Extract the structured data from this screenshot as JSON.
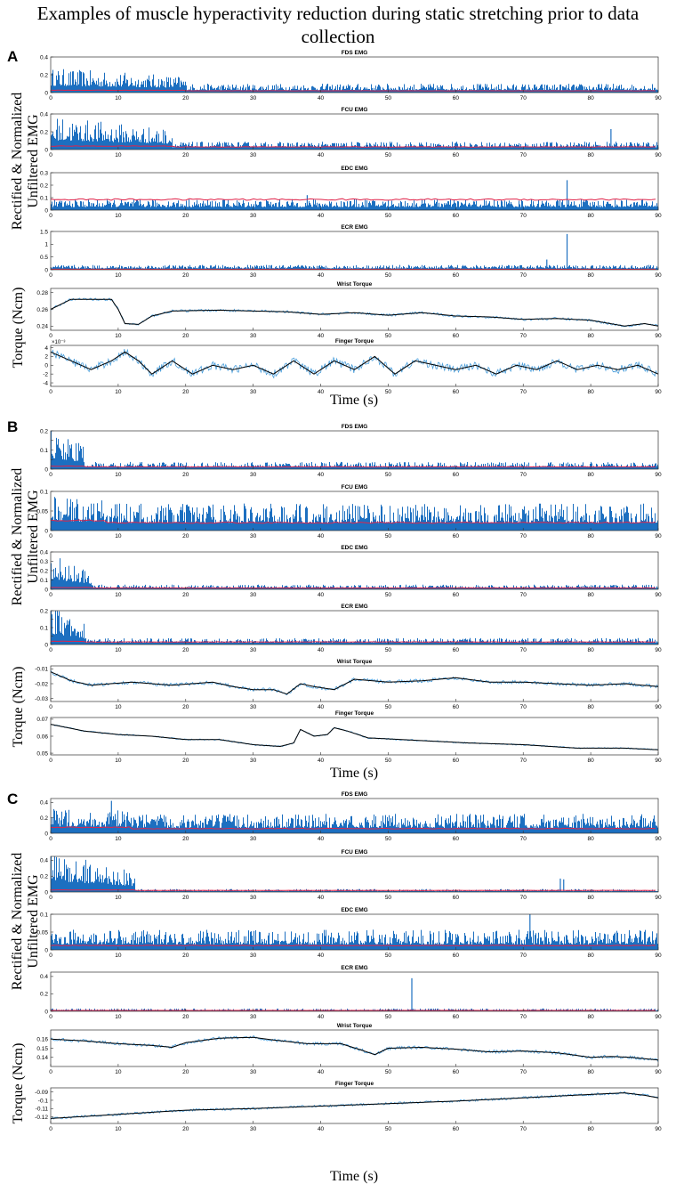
{
  "figure": {
    "title": "Examples of muscle hyperactivity reduction during static stretching prior to data collection",
    "title_line1": "Examples of muscle hyperactivity reduction during static stretching prior to data",
    "title_line2": "collection"
  },
  "colors": {
    "signal": "#1c6fc0",
    "raw_torque": "#4a9edb",
    "envelope_emg": "#e0244a",
    "filtered_torque": "#000000",
    "axis": "#333333"
  },
  "panels": [
    {
      "label": "A",
      "emg_ylabel_line1": "Rectified & Normalized",
      "emg_ylabel_line2": "Unfiltered EMG",
      "torque_ylabel": "Torque (Ncm)",
      "xlabel": "Time (s)"
    },
    {
      "label": "B",
      "emg_ylabel_line1": "Rectified & Normalized",
      "emg_ylabel_line2": "Unfiltered EMG",
      "torque_ylabel": "Torque (Ncm)",
      "xlabel": "Time (s)"
    },
    {
      "label": "C",
      "emg_ylabel_line1": "Rectified & Normalized",
      "emg_ylabel_line2": "Unfiltered EMG",
      "torque_ylabel": "Torque (Ncm)",
      "xlabel": "Time (s)"
    }
  ],
  "chart_data": [
    {
      "panel": "A",
      "type": "bar",
      "title": "FDS EMG",
      "xlim": [
        0,
        90
      ],
      "xticks": [
        0,
        10,
        20,
        30,
        40,
        50,
        60,
        70,
        80,
        90
      ],
      "ylim": [
        0,
        0.4
      ],
      "yticks": [
        0,
        0.2,
        0.4
      ],
      "ytick_labels": [
        "0",
        "0.2",
        "0.4"
      ],
      "baseline": 0.08,
      "envelope": 0.02,
      "early_level": 0.22,
      "early_end": 20,
      "spikes": []
    },
    {
      "panel": "A",
      "type": "bar",
      "title": "FCU EMG",
      "xlim": [
        0,
        90
      ],
      "xticks": [
        0,
        10,
        20,
        30,
        40,
        50,
        60,
        70,
        80,
        90
      ],
      "ylim": [
        0,
        0.4
      ],
      "yticks": [
        0,
        0.2,
        0.4
      ],
      "ytick_labels": [
        "0",
        "0.2",
        "0.4"
      ],
      "baseline": 0.07,
      "envelope": 0.03,
      "early_level": 0.3,
      "early_end": 18,
      "spikes": [
        {
          "t": 83,
          "v": 0.23
        }
      ]
    },
    {
      "panel": "A",
      "type": "bar",
      "title": "EDC EMG",
      "xlim": [
        0,
        90
      ],
      "xticks": [
        0,
        10,
        20,
        30,
        40,
        50,
        60,
        70,
        80,
        90
      ],
      "ylim": [
        0,
        0.3
      ],
      "yticks": [
        0,
        0.1,
        0.2,
        0.3
      ],
      "ytick_labels": [
        "0",
        "0.1",
        "0.2",
        "0.3"
      ],
      "baseline": 0.07,
      "envelope": 0.085,
      "early_level": 0.07,
      "early_end": 0,
      "spikes": [
        {
          "t": 76.5,
          "v": 0.24
        },
        {
          "t": 38,
          "v": 0.12
        }
      ]
    },
    {
      "panel": "A",
      "type": "bar",
      "title": "ECR EMG",
      "xlim": [
        0,
        90
      ],
      "xticks": [
        0,
        10,
        20,
        30,
        40,
        50,
        60,
        70,
        80,
        90
      ],
      "ylim": [
        0,
        1.5
      ],
      "yticks": [
        0,
        0.5,
        1,
        1.5
      ],
      "ytick_labels": [
        "0",
        "0.5",
        "1",
        "1.5"
      ],
      "baseline": 0.15,
      "envelope": 0.02,
      "early_level": 0.15,
      "early_end": 0,
      "spikes": [
        {
          "t": 76.5,
          "v": 1.4
        },
        {
          "t": 73.5,
          "v": 0.4
        }
      ]
    },
    {
      "panel": "A",
      "type": "line",
      "title": "Wrist Torque",
      "xlim": [
        0,
        90
      ],
      "xticks": [
        0,
        10,
        20,
        30,
        40,
        50,
        60,
        70,
        80,
        90
      ],
      "ylim": [
        0.235,
        0.285
      ],
      "yticks": [
        0.24,
        0.26,
        0.28
      ],
      "ytick_labels": [
        "0.24",
        "0.26",
        "0.28"
      ],
      "noise": 0.0015,
      "points": [
        [
          0,
          0.26
        ],
        [
          3,
          0.272
        ],
        [
          9,
          0.272
        ],
        [
          10,
          0.26
        ],
        [
          11,
          0.243
        ],
        [
          13,
          0.242
        ],
        [
          15,
          0.252
        ],
        [
          18,
          0.258
        ],
        [
          25,
          0.259
        ],
        [
          30,
          0.258
        ],
        [
          35,
          0.257
        ],
        [
          40,
          0.254
        ],
        [
          45,
          0.256
        ],
        [
          50,
          0.253
        ],
        [
          55,
          0.256
        ],
        [
          60,
          0.252
        ],
        [
          65,
          0.251
        ],
        [
          70,
          0.248
        ],
        [
          75,
          0.249
        ],
        [
          80,
          0.247
        ],
        [
          85,
          0.24
        ],
        [
          88,
          0.243
        ],
        [
          90,
          0.24
        ]
      ]
    },
    {
      "panel": "A",
      "type": "line",
      "title": "Finger Torque",
      "xlim": [
        0,
        90
      ],
      "xticks": [
        0,
        10,
        20,
        30,
        40,
        50,
        60,
        70,
        80,
        90
      ],
      "ylim": [
        -4.8,
        4.5
      ],
      "yticks": [
        -4,
        -2,
        0,
        2,
        4
      ],
      "ytick_labels": [
        "-4",
        "-2",
        "0",
        "2",
        "4"
      ],
      "exponent": "×10⁻³",
      "noise": 0.9,
      "points": [
        [
          0,
          3
        ],
        [
          3,
          1
        ],
        [
          6,
          -1
        ],
        [
          9,
          1
        ],
        [
          11,
          3
        ],
        [
          13,
          1
        ],
        [
          15,
          -2
        ],
        [
          18,
          1
        ],
        [
          21,
          -2
        ],
        [
          24,
          0
        ],
        [
          27,
          -1
        ],
        [
          30,
          0
        ],
        [
          33,
          -2
        ],
        [
          36,
          1
        ],
        [
          39,
          -2
        ],
        [
          42,
          1
        ],
        [
          45,
          -1
        ],
        [
          48,
          2
        ],
        [
          51,
          -2
        ],
        [
          54,
          1
        ],
        [
          57,
          0
        ],
        [
          60,
          -1
        ],
        [
          63,
          0
        ],
        [
          66,
          -2
        ],
        [
          69,
          0
        ],
        [
          72,
          -1
        ],
        [
          75,
          1
        ],
        [
          78,
          -1
        ],
        [
          81,
          0
        ],
        [
          84,
          -1
        ],
        [
          87,
          0
        ],
        [
          90,
          -2
        ]
      ]
    },
    {
      "panel": "B",
      "type": "bar",
      "title": "FDS EMG",
      "xlim": [
        0,
        90
      ],
      "xticks": [
        0,
        10,
        20,
        30,
        40,
        50,
        60,
        70,
        80,
        90
      ],
      "ylim": [
        0,
        0.2
      ],
      "yticks": [
        0,
        0.05,
        0.1,
        0.15,
        0.2
      ],
      "ytick_labels": [
        "0",
        "",
        "0.1",
        "",
        "0.2"
      ],
      "baseline": 0.03,
      "envelope": 0.012,
      "early_level": 0.17,
      "early_end": 5,
      "spikes": []
    },
    {
      "panel": "B",
      "type": "bar",
      "title": "FCU EMG",
      "xlim": [
        0,
        90
      ],
      "xticks": [
        0,
        10,
        20,
        30,
        40,
        50,
        60,
        70,
        80,
        90
      ],
      "ylim": [
        0,
        0.1
      ],
      "yticks": [
        0,
        0.05,
        0.1
      ],
      "ytick_labels": [
        "0",
        "0.05",
        "0.1"
      ],
      "baseline": 0.055,
      "envelope": 0.02,
      "early_level": 0.07,
      "early_end": 8,
      "spikes": []
    },
    {
      "panel": "B",
      "type": "bar",
      "title": "EDC EMG",
      "xlim": [
        0,
        90
      ],
      "xticks": [
        0,
        10,
        20,
        30,
        40,
        50,
        60,
        70,
        80,
        90
      ],
      "ylim": [
        0,
        0.4
      ],
      "yticks": [
        0,
        0.1,
        0.2,
        0.3,
        0.4
      ],
      "ytick_labels": [
        "0",
        "0.1",
        "0.2",
        "0.3",
        "0.4"
      ],
      "baseline": 0.04,
      "envelope": 0.015,
      "early_level": 0.3,
      "early_end": 6,
      "spikes": []
    },
    {
      "panel": "B",
      "type": "bar",
      "title": "ECR EMG",
      "xlim": [
        0,
        90
      ],
      "xticks": [
        0,
        10,
        20,
        30,
        40,
        50,
        60,
        70,
        80,
        90
      ],
      "ylim": [
        0,
        0.2
      ],
      "yticks": [
        0,
        0.05,
        0.1,
        0.15,
        0.2
      ],
      "ytick_labels": [
        "0",
        "",
        "0.1",
        "",
        "0.2"
      ],
      "baseline": 0.03,
      "envelope": 0.015,
      "early_level": 0.18,
      "early_end": 5,
      "spikes": []
    },
    {
      "panel": "B",
      "type": "line",
      "title": "Wrist Torque",
      "xlim": [
        0,
        90
      ],
      "xticks": [
        0,
        10,
        20,
        30,
        40,
        50,
        60,
        70,
        80,
        90
      ],
      "ylim": [
        -0.032,
        -0.008
      ],
      "yticks": [
        -0.03,
        -0.02,
        -0.01
      ],
      "ytick_labels": [
        "-0.03",
        "-0.02",
        "-0.01"
      ],
      "noise": 0.0012,
      "points": [
        [
          0,
          -0.012
        ],
        [
          3,
          -0.018
        ],
        [
          6,
          -0.021
        ],
        [
          12,
          -0.019
        ],
        [
          18,
          -0.021
        ],
        [
          24,
          -0.019
        ],
        [
          27,
          -0.022
        ],
        [
          30,
          -0.024
        ],
        [
          33,
          -0.024
        ],
        [
          35,
          -0.027
        ],
        [
          37,
          -0.02
        ],
        [
          39,
          -0.022
        ],
        [
          42,
          -0.024
        ],
        [
          45,
          -0.017
        ],
        [
          50,
          -0.019
        ],
        [
          55,
          -0.018
        ],
        [
          60,
          -0.016
        ],
        [
          65,
          -0.019
        ],
        [
          70,
          -0.019
        ],
        [
          75,
          -0.02
        ],
        [
          80,
          -0.021
        ],
        [
          85,
          -0.02
        ],
        [
          90,
          -0.022
        ]
      ]
    },
    {
      "panel": "B",
      "type": "line",
      "title": "Finger Torque",
      "xlim": [
        0,
        90
      ],
      "xticks": [
        0,
        10,
        20,
        30,
        40,
        50,
        60,
        70,
        80,
        90
      ],
      "ylim": [
        0.049,
        0.071
      ],
      "yticks": [
        0.05,
        0.06,
        0.07
      ],
      "ytick_labels": [
        "0.05",
        "0.06",
        "0.07"
      ],
      "noise": 0.0004,
      "points": [
        [
          0,
          0.067
        ],
        [
          5,
          0.063
        ],
        [
          10,
          0.061
        ],
        [
          15,
          0.06
        ],
        [
          20,
          0.058
        ],
        [
          25,
          0.058
        ],
        [
          30,
          0.055
        ],
        [
          34,
          0.054
        ],
        [
          36,
          0.056
        ],
        [
          37,
          0.064
        ],
        [
          39,
          0.06
        ],
        [
          41,
          0.061
        ],
        [
          42,
          0.065
        ],
        [
          44,
          0.063
        ],
        [
          47,
          0.059
        ],
        [
          52,
          0.058
        ],
        [
          57,
          0.057
        ],
        [
          62,
          0.056
        ],
        [
          70,
          0.055
        ],
        [
          78,
          0.053
        ],
        [
          85,
          0.053
        ],
        [
          90,
          0.052
        ]
      ]
    },
    {
      "panel": "C",
      "type": "bar",
      "title": "FDS EMG",
      "xlim": [
        0,
        90
      ],
      "xticks": [
        0,
        10,
        20,
        30,
        40,
        50,
        60,
        70,
        80,
        90
      ],
      "ylim": [
        0,
        0.45
      ],
      "yticks": [
        0,
        0.2,
        0.4
      ],
      "ytick_labels": [
        "0",
        "0.2",
        "0.4"
      ],
      "baseline": 0.2,
      "envelope": 0.06,
      "early_level": 0.26,
      "early_end": 12,
      "spikes": [
        {
          "t": 9,
          "v": 0.42
        }
      ]
    },
    {
      "panel": "C",
      "type": "bar",
      "title": "FCU EMG",
      "xlim": [
        0,
        90
      ],
      "xticks": [
        0,
        10,
        20,
        30,
        40,
        50,
        60,
        70,
        80,
        90
      ],
      "ylim": [
        0,
        0.45
      ],
      "yticks": [
        0,
        0.2,
        0.4
      ],
      "ytick_labels": [
        "0",
        "0.2",
        "0.4"
      ],
      "baseline": 0.03,
      "envelope": 0.02,
      "early_level": 0.4,
      "early_end": 12.5,
      "spikes": [
        {
          "t": 75.5,
          "v": 0.17
        },
        {
          "t": 76,
          "v": 0.16
        }
      ]
    },
    {
      "panel": "C",
      "type": "bar",
      "title": "EDC EMG",
      "xlim": [
        0,
        90
      ],
      "xticks": [
        0,
        10,
        20,
        30,
        40,
        50,
        60,
        70,
        80,
        90
      ],
      "ylim": [
        0,
        0.1
      ],
      "yticks": [
        0,
        0.05,
        0.1
      ],
      "ytick_labels": [
        "0",
        "0.05",
        "0.1"
      ],
      "baseline": 0.045,
      "envelope": 0.012,
      "early_level": 0.045,
      "early_end": 0,
      "spikes": [
        {
          "t": 71,
          "v": 0.1
        }
      ]
    },
    {
      "panel": "C",
      "type": "bar",
      "title": "ECR EMG",
      "xlim": [
        0,
        90
      ],
      "xticks": [
        0,
        10,
        20,
        30,
        40,
        50,
        60,
        70,
        80,
        90
      ],
      "ylim": [
        0,
        0.45
      ],
      "yticks": [
        0,
        0.2,
        0.4
      ],
      "ytick_labels": [
        "0",
        "0.2",
        "0.4"
      ],
      "baseline": 0.025,
      "envelope": 0.01,
      "early_level": 0.025,
      "early_end": 0,
      "spikes": [
        {
          "t": 53.5,
          "v": 0.38
        }
      ]
    },
    {
      "panel": "C",
      "type": "line",
      "title": "Wrist Torque",
      "xlim": [
        0,
        90
      ],
      "xticks": [
        0,
        10,
        20,
        30,
        40,
        50,
        60,
        70,
        80,
        90
      ],
      "ylim": [
        0.13,
        0.17
      ],
      "yticks": [
        0.14,
        0.15,
        0.16
      ],
      "ytick_labels": [
        "0.14",
        "0.15",
        "0.16"
      ],
      "noise": 0.0018,
      "points": [
        [
          0,
          0.16
        ],
        [
          5,
          0.158
        ],
        [
          10,
          0.155
        ],
        [
          15,
          0.153
        ],
        [
          18,
          0.151
        ],
        [
          20,
          0.156
        ],
        [
          25,
          0.161
        ],
        [
          30,
          0.162
        ],
        [
          33,
          0.159
        ],
        [
          38,
          0.155
        ],
        [
          43,
          0.155
        ],
        [
          46,
          0.148
        ],
        [
          48,
          0.143
        ],
        [
          50,
          0.15
        ],
        [
          55,
          0.151
        ],
        [
          60,
          0.149
        ],
        [
          65,
          0.146
        ],
        [
          70,
          0.147
        ],
        [
          75,
          0.145
        ],
        [
          80,
          0.14
        ],
        [
          83,
          0.141
        ],
        [
          86,
          0.14
        ],
        [
          90,
          0.137
        ]
      ]
    },
    {
      "panel": "C",
      "type": "line",
      "title": "Finger Torque",
      "xlim": [
        0,
        90
      ],
      "xticks": [
        0,
        10,
        20,
        30,
        40,
        50,
        60,
        70,
        80,
        90
      ],
      "ylim": [
        -0.128,
        -0.085
      ],
      "yticks": [
        -0.12,
        -0.11,
        -0.1,
        -0.09
      ],
      "ytick_labels": [
        "-0.12",
        "-0.11",
        "-0.1",
        "-0.09"
      ],
      "noise": 0.0015,
      "points": [
        [
          0,
          -0.122
        ],
        [
          10,
          -0.117
        ],
        [
          20,
          -0.112
        ],
        [
          30,
          -0.11
        ],
        [
          40,
          -0.107
        ],
        [
          50,
          -0.104
        ],
        [
          60,
          -0.101
        ],
        [
          70,
          -0.097
        ],
        [
          80,
          -0.093
        ],
        [
          85,
          -0.091
        ],
        [
          88,
          -0.094
        ],
        [
          90,
          -0.097
        ]
      ]
    }
  ]
}
